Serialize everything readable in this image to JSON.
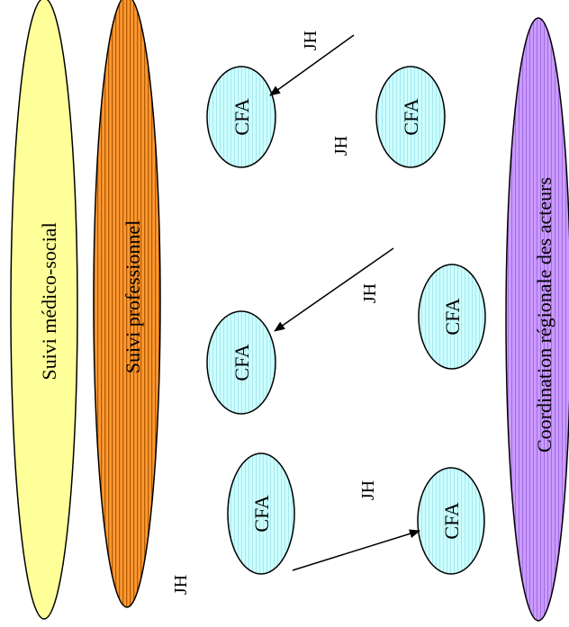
{
  "bands": {
    "medico_social": {
      "label": "Suivi médico-social",
      "color": "#ffff99"
    },
    "professionnel": {
      "label": "Suivi professionnel",
      "color": "#ff9933"
    },
    "coordination": {
      "label": "Coordination régionale des acteurs",
      "color": "#cc99ff"
    }
  },
  "cfa_nodes": [
    {
      "label": "CFA",
      "color": "#ccffff"
    },
    {
      "label": "CFA",
      "color": "#ccffff"
    },
    {
      "label": "CFA",
      "color": "#ccffff"
    },
    {
      "label": "CFA",
      "color": "#ccffff"
    },
    {
      "label": "CFA",
      "color": "#ccffff"
    },
    {
      "label": "CFA",
      "color": "#ccffff"
    }
  ],
  "jh_labels": [
    {
      "label": "JH"
    },
    {
      "label": "JH"
    },
    {
      "label": "JH"
    },
    {
      "label": "JH"
    },
    {
      "label": "JH"
    }
  ],
  "arrow_color": "#000000"
}
